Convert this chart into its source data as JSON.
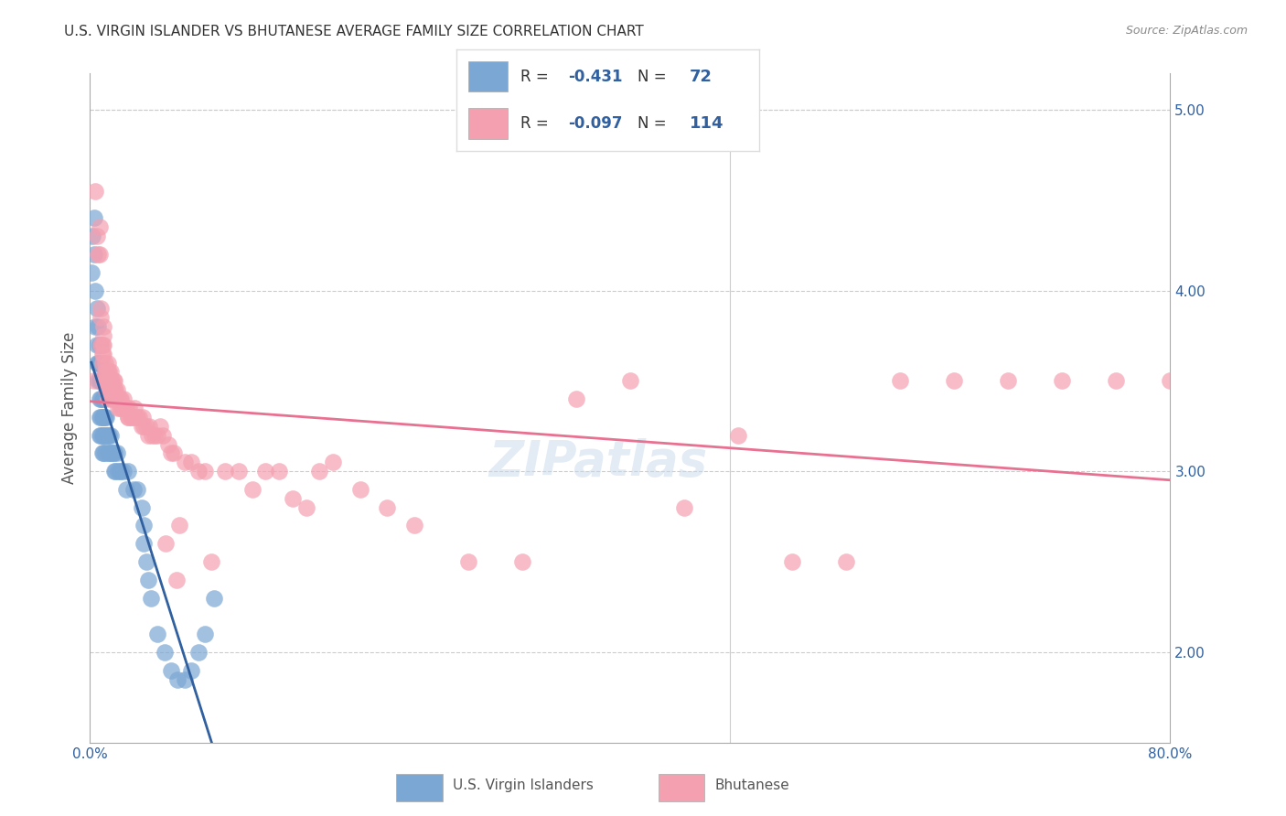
{
  "title": "U.S. VIRGIN ISLANDER VS BHUTANESE AVERAGE FAMILY SIZE CORRELATION CHART",
  "source": "Source: ZipAtlas.com",
  "ylabel": "Average Family Size",
  "right_yticks": [
    2.0,
    3.0,
    4.0,
    5.0
  ],
  "r_blue": -0.431,
  "n_blue": 72,
  "r_pink": -0.097,
  "n_pink": 114,
  "legend_blue_label": "U.S. Virgin Islanders",
  "legend_pink_label": "Bhutanese",
  "blue_color": "#7BA7D4",
  "pink_color": "#F4A0B0",
  "blue_line_color": "#3060A0",
  "pink_line_color": "#E87090",
  "watermark": "ZIPatlas",
  "blue_x": [
    0.001,
    0.002,
    0.003,
    0.003,
    0.004,
    0.004,
    0.005,
    0.005,
    0.005,
    0.006,
    0.006,
    0.006,
    0.007,
    0.007,
    0.007,
    0.007,
    0.007,
    0.007,
    0.008,
    0.008,
    0.008,
    0.008,
    0.009,
    0.009,
    0.009,
    0.009,
    0.009,
    0.01,
    0.01,
    0.01,
    0.01,
    0.01,
    0.011,
    0.011,
    0.011,
    0.012,
    0.012,
    0.013,
    0.013,
    0.014,
    0.014,
    0.015,
    0.015,
    0.016,
    0.017,
    0.018,
    0.018,
    0.019,
    0.02,
    0.021,
    0.022,
    0.023,
    0.025,
    0.027,
    0.028,
    0.032,
    0.035,
    0.038,
    0.04,
    0.04,
    0.042,
    0.043,
    0.045,
    0.05,
    0.055,
    0.06,
    0.065,
    0.07,
    0.075,
    0.08,
    0.085,
    0.092
  ],
  "blue_y": [
    4.1,
    4.3,
    4.4,
    4.2,
    4.0,
    3.8,
    3.9,
    3.7,
    3.6,
    3.8,
    3.6,
    3.5,
    3.7,
    3.6,
    3.5,
    3.4,
    3.3,
    3.2,
    3.5,
    3.4,
    3.3,
    3.2,
    3.5,
    3.4,
    3.3,
    3.2,
    3.1,
    3.4,
    3.3,
    3.3,
    3.2,
    3.1,
    3.3,
    3.2,
    3.1,
    3.3,
    3.2,
    3.2,
    3.1,
    3.2,
    3.1,
    3.2,
    3.1,
    3.1,
    3.1,
    3.1,
    3.0,
    3.0,
    3.1,
    3.0,
    3.0,
    3.0,
    3.0,
    2.9,
    3.0,
    2.9,
    2.9,
    2.8,
    2.7,
    2.6,
    2.5,
    2.4,
    2.3,
    2.1,
    2.0,
    1.9,
    1.85,
    1.85,
    1.9,
    2.0,
    2.1,
    2.3
  ],
  "pink_x": [
    0.003,
    0.004,
    0.005,
    0.006,
    0.007,
    0.007,
    0.008,
    0.008,
    0.008,
    0.009,
    0.009,
    0.009,
    0.01,
    0.01,
    0.01,
    0.01,
    0.011,
    0.011,
    0.011,
    0.012,
    0.012,
    0.012,
    0.013,
    0.013,
    0.013,
    0.013,
    0.013,
    0.014,
    0.014,
    0.014,
    0.015,
    0.015,
    0.015,
    0.016,
    0.016,
    0.016,
    0.017,
    0.017,
    0.018,
    0.018,
    0.018,
    0.019,
    0.019,
    0.02,
    0.02,
    0.021,
    0.021,
    0.022,
    0.022,
    0.023,
    0.023,
    0.024,
    0.025,
    0.025,
    0.026,
    0.027,
    0.028,
    0.028,
    0.029,
    0.03,
    0.031,
    0.032,
    0.033,
    0.034,
    0.035,
    0.036,
    0.038,
    0.039,
    0.04,
    0.042,
    0.043,
    0.044,
    0.046,
    0.048,
    0.05,
    0.052,
    0.054,
    0.056,
    0.058,
    0.06,
    0.062,
    0.064,
    0.066,
    0.07,
    0.075,
    0.08,
    0.085,
    0.09,
    0.1,
    0.11,
    0.12,
    0.13,
    0.14,
    0.15,
    0.16,
    0.17,
    0.18,
    0.2,
    0.22,
    0.24,
    0.28,
    0.32,
    0.36,
    0.4,
    0.44,
    0.48,
    0.52,
    0.56,
    0.6,
    0.64,
    0.68,
    0.72,
    0.76,
    0.8
  ],
  "pink_y": [
    3.5,
    4.55,
    4.3,
    4.2,
    4.35,
    4.2,
    3.9,
    3.85,
    3.7,
    3.7,
    3.65,
    3.6,
    3.8,
    3.75,
    3.7,
    3.65,
    3.6,
    3.55,
    3.5,
    3.55,
    3.5,
    3.45,
    3.6,
    3.55,
    3.5,
    3.45,
    3.4,
    3.55,
    3.5,
    3.45,
    3.55,
    3.5,
    3.45,
    3.5,
    3.45,
    3.4,
    3.5,
    3.45,
    3.5,
    3.45,
    3.4,
    3.45,
    3.4,
    3.45,
    3.4,
    3.4,
    3.35,
    3.4,
    3.35,
    3.4,
    3.35,
    3.35,
    3.4,
    3.35,
    3.35,
    3.35,
    3.3,
    3.3,
    3.35,
    3.3,
    3.3,
    3.3,
    3.35,
    3.3,
    3.3,
    3.3,
    3.25,
    3.3,
    3.25,
    3.25,
    3.2,
    3.25,
    3.2,
    3.2,
    3.2,
    3.25,
    3.2,
    2.6,
    3.15,
    3.1,
    3.1,
    2.4,
    2.7,
    3.05,
    3.05,
    3.0,
    3.0,
    2.5,
    3.0,
    3.0,
    2.9,
    3.0,
    3.0,
    2.85,
    2.8,
    3.0,
    3.05,
    2.9,
    2.8,
    2.7,
    2.5,
    2.5,
    3.4,
    3.5,
    2.8,
    3.2,
    2.5,
    2.5,
    3.5,
    3.5,
    3.5,
    3.5,
    3.5,
    3.5
  ]
}
